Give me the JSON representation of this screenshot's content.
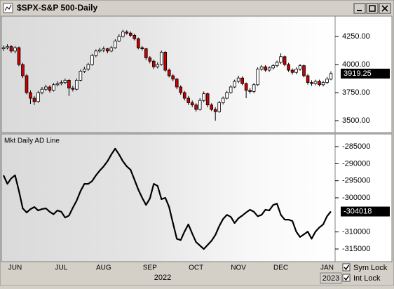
{
  "window": {
    "title": "$SPX-S&P 500-Daily",
    "year": "2022",
    "next_year": "2023",
    "sym_lock": "Sym Lock",
    "int_lock": "Int Lock"
  },
  "chart_data": [
    {
      "type": "candlestick",
      "up_color": "#ffffff",
      "down_color": "#cc0000",
      "outline_color": "#000000",
      "categories": [
        null,
        null,
        null,
        "JUN",
        null,
        null,
        null,
        null,
        null,
        null,
        null,
        null,
        null,
        null,
        null,
        "JUL",
        null,
        null,
        null,
        null,
        null,
        null,
        null,
        null,
        null,
        null,
        "AUG",
        null,
        null,
        null,
        null,
        null,
        null,
        null,
        null,
        null,
        null,
        null,
        "SEP",
        null,
        null,
        null,
        null,
        null,
        null,
        null,
        null,
        null,
        null,
        null,
        "OCT",
        null,
        null,
        null,
        null,
        null,
        null,
        null,
        null,
        null,
        null,
        "NOV",
        null,
        null,
        null,
        null,
        null,
        null,
        null,
        null,
        null,
        null,
        "DEC",
        null,
        null,
        null,
        null,
        null,
        null,
        null,
        null,
        null,
        null,
        null,
        "JAN",
        null
      ],
      "open": [
        4140,
        4150,
        4160,
        4120,
        4150,
        4000,
        3900,
        3750,
        3700,
        3670,
        3750,
        3780,
        3800,
        3770,
        3820,
        3830,
        3840,
        3860,
        3790,
        3780,
        3860,
        3940,
        3960,
        4000,
        4080,
        4120,
        4130,
        4140,
        4120,
        4150,
        4210,
        4250,
        4290,
        4280,
        4260,
        4230,
        4150,
        4140,
        4060,
        4030,
        3980,
        4000,
        4110,
        3950,
        3900,
        3870,
        3800,
        3750,
        3700,
        3660,
        3640,
        3600,
        3680,
        3740,
        3640,
        3600,
        3580,
        3660,
        3700,
        3750,
        3800,
        3850,
        3880,
        3830,
        3770,
        3760,
        3820,
        3960,
        3980,
        3950,
        3970,
        3990,
        4020,
        4070,
        4000,
        3950,
        3930,
        3960,
        3990,
        3900,
        3840,
        3830,
        3850,
        3820,
        3840,
        3870
      ],
      "high": [
        4170,
        4180,
        4175,
        4165,
        4160,
        4015,
        3915,
        3770,
        3720,
        3765,
        3800,
        3820,
        3815,
        3835,
        3850,
        3860,
        3875,
        3870,
        3810,
        3875,
        3955,
        3980,
        4015,
        4095,
        4135,
        4150,
        4160,
        4150,
        4165,
        4225,
        4270,
        4310,
        4305,
        4295,
        4275,
        4240,
        4165,
        4150,
        4075,
        4045,
        4020,
        4125,
        4120,
        3965,
        3915,
        3880,
        3815,
        3765,
        3720,
        3680,
        3655,
        3700,
        3760,
        3750,
        3655,
        3620,
        3675,
        3715,
        3765,
        3815,
        3865,
        3900,
        3895,
        3840,
        3790,
        3835,
        3975,
        3995,
        3995,
        3985,
        4005,
        4035,
        4100,
        4080,
        4015,
        3965,
        3975,
        4005,
        4000,
        3915,
        3860,
        3865,
        3865,
        3855,
        3890,
        3940
      ],
      "low": [
        4120,
        4135,
        4105,
        4100,
        3985,
        3880,
        3735,
        3650,
        3640,
        3660,
        3735,
        3765,
        3750,
        3760,
        3805,
        3815,
        3825,
        3720,
        3760,
        3770,
        3850,
        3925,
        3945,
        3990,
        4065,
        4105,
        4110,
        4100,
        4110,
        4140,
        4200,
        4240,
        4265,
        4245,
        4215,
        4135,
        4125,
        4040,
        4010,
        3960,
        3965,
        3990,
        3935,
        3885,
        3850,
        3780,
        3730,
        3680,
        3640,
        3620,
        3580,
        3590,
        3665,
        3620,
        3585,
        3500,
        3570,
        3645,
        3690,
        3740,
        3790,
        3835,
        3815,
        3700,
        3740,
        3745,
        3810,
        3945,
        3935,
        3935,
        3955,
        3975,
        4005,
        3985,
        3935,
        3910,
        3915,
        3945,
        3885,
        3820,
        3810,
        3815,
        3805,
        3805,
        3825,
        3860
      ],
      "close": [
        4150,
        4160,
        4120,
        4150,
        4000,
        3900,
        3750,
        3700,
        3670,
        3750,
        3780,
        3800,
        3770,
        3820,
        3830,
        3840,
        3860,
        3790,
        3780,
        3860,
        3940,
        3960,
        4000,
        4080,
        4120,
        4130,
        4140,
        4120,
        4150,
        4210,
        4250,
        4290,
        4280,
        4260,
        4230,
        4150,
        4140,
        4060,
        4030,
        3980,
        4000,
        4110,
        3950,
        3900,
        3870,
        3800,
        3750,
        3700,
        3660,
        3640,
        3600,
        3680,
        3740,
        3640,
        3600,
        3580,
        3660,
        3700,
        3750,
        3800,
        3850,
        3880,
        3830,
        3770,
        3760,
        3820,
        3960,
        3980,
        3950,
        3970,
        3990,
        4020,
        4070,
        4000,
        3950,
        3930,
        3960,
        3990,
        3900,
        3840,
        3830,
        3850,
        3820,
        3840,
        3870,
        3919.25
      ],
      "ylim": [
        3400,
        4425
      ],
      "yticks": [
        {
          "value": 3500,
          "label": "3500.00"
        },
        {
          "value": 3750,
          "label": "3750.00"
        },
        {
          "value": 4000,
          "label": "4000.00"
        },
        {
          "value": 4250,
          "label": "4250.00"
        }
      ]
    },
    {
      "type": "line",
      "title": "Mkt Daily AD Line",
      "color": "#000000",
      "values": [
        -293400,
        -295900,
        -294300,
        -293400,
        -298000,
        -303100,
        -304300,
        -303300,
        -302700,
        -303700,
        -303300,
        -303100,
        -304100,
        -304800,
        -303700,
        -304100,
        -305800,
        -305200,
        -302900,
        -300800,
        -298000,
        -295900,
        -295900,
        -295100,
        -293400,
        -292000,
        -290800,
        -289300,
        -287300,
        -285600,
        -287300,
        -289300,
        -290800,
        -291800,
        -294700,
        -297600,
        -300000,
        -302100,
        -300200,
        -295900,
        -296500,
        -300400,
        -300000,
        -302700,
        -307400,
        -312000,
        -312400,
        -309900,
        -307800,
        -310500,
        -313000,
        -314000,
        -315000,
        -313800,
        -312600,
        -310900,
        -308300,
        -306200,
        -305000,
        -305600,
        -307400,
        -306000,
        -305200,
        -304300,
        -303500,
        -304100,
        -305400,
        -305000,
        -303500,
        -303700,
        -302100,
        -301700,
        -305000,
        -306400,
        -306400,
        -306800,
        -309900,
        -311500,
        -310700,
        -309900,
        -312000,
        -309900,
        -308700,
        -307800,
        -305400,
        -304018
      ],
      "ylim": [
        -318500,
        -281500
      ],
      "yticks": [
        -315000,
        -310000,
        -300000,
        -295000,
        -290000,
        -285000
      ]
    }
  ]
}
